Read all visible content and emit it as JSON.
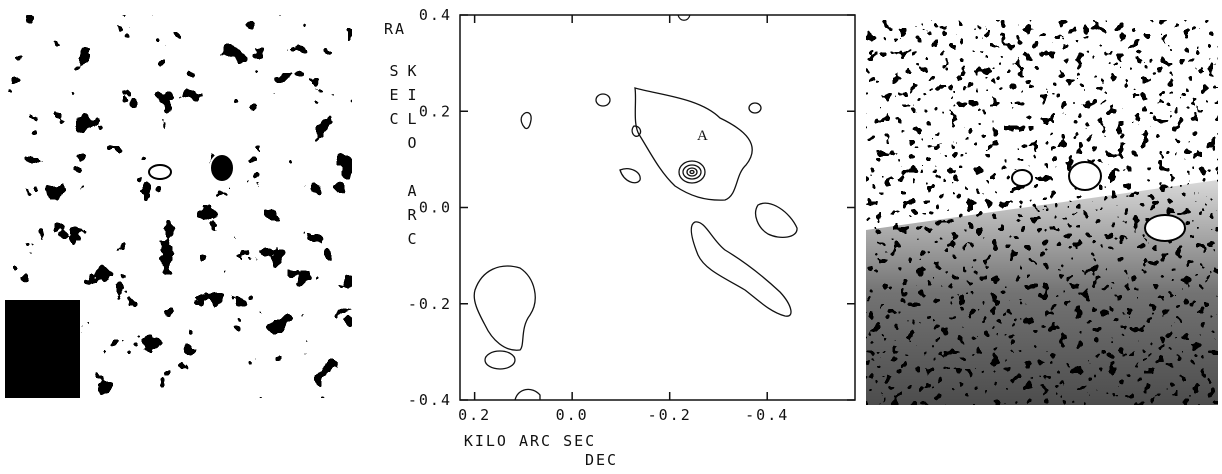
{
  "chart_data": {
    "type": "contour",
    "y_label_prefix": "RA",
    "y_label": "KILO ARC SEC",
    "x_label": "KILO ARC SEC",
    "x_label_extra": "DEC",
    "annotation": "A",
    "xlim": [
      0.23,
      -0.58
    ],
    "ylim": [
      -0.4,
      0.4
    ],
    "xticks": [
      0.2,
      {
        "value": 0,
        "label": "0.0"
      },
      -0.2,
      -0.4
    ],
    "yticks": [
      0.4,
      0.2,
      {
        "value": 0,
        "label": "0.0"
      },
      -0.2,
      -0.4
    ]
  }
}
